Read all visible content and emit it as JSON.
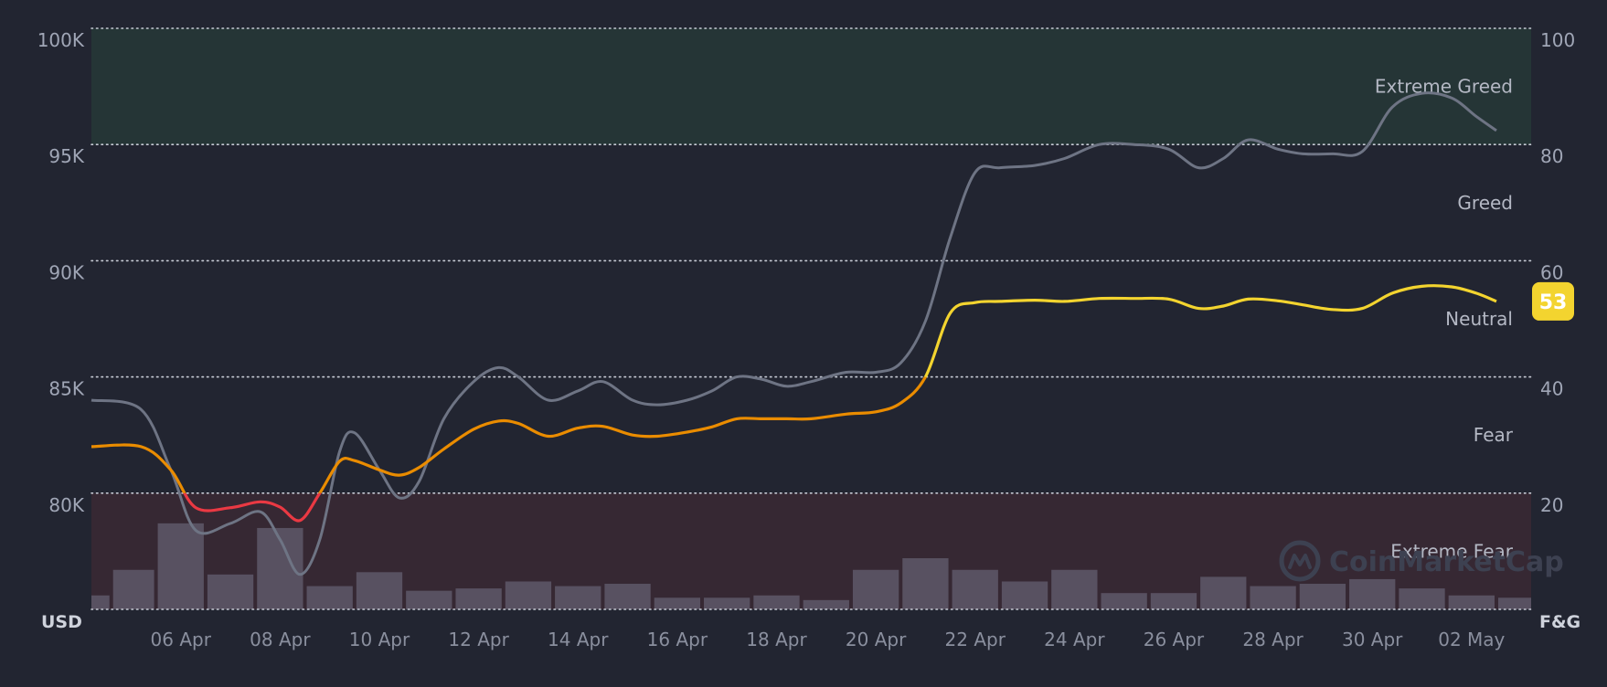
{
  "chart_data": {
    "type": "line",
    "x_ticks": [
      "06 Apr",
      "08 Apr",
      "10 Apr",
      "12 Apr",
      "14 Apr",
      "16 Apr",
      "18 Apr",
      "20 Apr",
      "22 Apr",
      "24 Apr",
      "26 Apr",
      "28 Apr",
      "30 Apr",
      "02 May"
    ],
    "x_range": [
      4.2,
      33.2
    ],
    "y_left": {
      "unit": "USD",
      "min": 75000,
      "max": 100000,
      "ticks": [
        "80K",
        "85K",
        "90K",
        "95K",
        "100K"
      ],
      "tick_values": [
        80000,
        85000,
        90000,
        95000,
        100000
      ]
    },
    "y_right": {
      "unit": "F&G",
      "min": 0,
      "max": 100,
      "ticks": [
        "20",
        "40",
        "60",
        "80",
        "100"
      ],
      "tick_values": [
        20,
        40,
        60,
        80,
        100
      ]
    },
    "zones": [
      {
        "label": "Extreme Greed",
        "from": 80,
        "to": 100,
        "color": "#253536"
      },
      {
        "label": "Greed",
        "from": 60,
        "to": 80
      },
      {
        "label": "Neutral",
        "from": 40,
        "to": 60
      },
      {
        "label": "Fear",
        "from": 20,
        "to": 40
      },
      {
        "label": "Extreme Fear",
        "from": 0,
        "to": 20,
        "color": "#362833"
      }
    ],
    "series": [
      {
        "axis": "left",
        "color": "#6e7484",
        "points": [
          [
            4.2,
            84000
          ],
          [
            5.2,
            83600
          ],
          [
            5.8,
            81000
          ],
          [
            6.3,
            78400
          ],
          [
            7.0,
            78700
          ],
          [
            7.6,
            79200
          ],
          [
            8.0,
            78000
          ],
          [
            8.4,
            76500
          ],
          [
            8.8,
            78000
          ],
          [
            9.2,
            81800
          ],
          [
            9.5,
            82600
          ],
          [
            10.0,
            81000
          ],
          [
            10.4,
            79800
          ],
          [
            10.8,
            80500
          ],
          [
            11.3,
            83200
          ],
          [
            11.9,
            84800
          ],
          [
            12.4,
            85400
          ],
          [
            12.8,
            85000
          ],
          [
            13.4,
            84000
          ],
          [
            14.0,
            84400
          ],
          [
            14.5,
            84800
          ],
          [
            15.1,
            84000
          ],
          [
            15.6,
            83800
          ],
          [
            16.2,
            84000
          ],
          [
            16.7,
            84400
          ],
          [
            17.2,
            85000
          ],
          [
            17.7,
            84900
          ],
          [
            18.2,
            84600
          ],
          [
            18.7,
            84800
          ],
          [
            19.4,
            85200
          ],
          [
            20.0,
            85200
          ],
          [
            20.5,
            85600
          ],
          [
            21.0,
            87400
          ],
          [
            21.5,
            91000
          ],
          [
            22.0,
            93800
          ],
          [
            22.5,
            94000
          ],
          [
            23.2,
            94100
          ],
          [
            23.8,
            94400
          ],
          [
            24.5,
            95000
          ],
          [
            25.2,
            95000
          ],
          [
            25.9,
            94800
          ],
          [
            26.5,
            94000
          ],
          [
            27.0,
            94400
          ],
          [
            27.5,
            95200
          ],
          [
            28.1,
            94800
          ],
          [
            28.6,
            94600
          ],
          [
            29.2,
            94600
          ],
          [
            29.8,
            94700
          ],
          [
            30.4,
            96600
          ],
          [
            31.0,
            97200
          ],
          [
            31.6,
            97000
          ],
          [
            32.1,
            96200
          ],
          [
            32.5,
            95600
          ]
        ]
      },
      {
        "axis": "right",
        "color_by_zone": {
          "Extreme Fear": "#ea3943",
          "Fear": "#ea8c00",
          "Neutral": "#f3d42f"
        },
        "points": [
          [
            4.2,
            28
          ],
          [
            5.2,
            28
          ],
          [
            5.8,
            24
          ],
          [
            6.3,
            17.5
          ],
          [
            7.0,
            17.5
          ],
          [
            7.6,
            18.5
          ],
          [
            8.0,
            17.6
          ],
          [
            8.4,
            15.3
          ],
          [
            8.8,
            20.0
          ],
          [
            9.2,
            25.5
          ],
          [
            9.5,
            25.6
          ],
          [
            10.0,
            24.0
          ],
          [
            10.4,
            23.1
          ],
          [
            10.8,
            24.4
          ],
          [
            11.3,
            27.6
          ],
          [
            11.9,
            31.0
          ],
          [
            12.4,
            32.4
          ],
          [
            12.8,
            32.0
          ],
          [
            13.4,
            29.8
          ],
          [
            14.0,
            31.2
          ],
          [
            14.5,
            31.5
          ],
          [
            15.1,
            30.0
          ],
          [
            15.6,
            29.8
          ],
          [
            16.2,
            30.5
          ],
          [
            16.7,
            31.4
          ],
          [
            17.2,
            32.8
          ],
          [
            17.7,
            32.8
          ],
          [
            18.2,
            32.8
          ],
          [
            18.7,
            32.8
          ],
          [
            19.4,
            33.6
          ],
          [
            20.0,
            34.0
          ],
          [
            20.5,
            35.5
          ],
          [
            21.0,
            40.0
          ],
          [
            21.5,
            51.0
          ],
          [
            22.0,
            52.8
          ],
          [
            22.5,
            53.0
          ],
          [
            23.2,
            53.2
          ],
          [
            23.8,
            53.0
          ],
          [
            24.5,
            53.5
          ],
          [
            25.2,
            53.5
          ],
          [
            25.9,
            53.4
          ],
          [
            26.5,
            51.8
          ],
          [
            27.0,
            52.2
          ],
          [
            27.5,
            53.4
          ],
          [
            28.1,
            53.1
          ],
          [
            28.6,
            52.4
          ],
          [
            29.2,
            51.6
          ],
          [
            29.8,
            51.8
          ],
          [
            30.4,
            54.4
          ],
          [
            31.0,
            55.6
          ],
          [
            31.6,
            55.5
          ],
          [
            32.1,
            54.4
          ],
          [
            32.5,
            53.0
          ]
        ]
      },
      {
        "type": "bar",
        "axis": "left",
        "color": "#5c5566",
        "opacity": 0.9,
        "values": [
          [
            4.2,
            75600
          ],
          [
            5.0,
            76700
          ],
          [
            6.0,
            78700
          ],
          [
            7.0,
            76500
          ],
          [
            8.0,
            78500
          ],
          [
            9.0,
            76000
          ],
          [
            10.0,
            76600
          ],
          [
            11.0,
            75800
          ],
          [
            12.0,
            75900
          ],
          [
            13.0,
            76200
          ],
          [
            14.0,
            76000
          ],
          [
            15.0,
            76100
          ],
          [
            16.0,
            75500
          ],
          [
            17.0,
            75500
          ],
          [
            18.0,
            75600
          ],
          [
            19.0,
            75400
          ],
          [
            20.0,
            76700
          ],
          [
            21.0,
            77200
          ],
          [
            22.0,
            76700
          ],
          [
            23.0,
            76200
          ],
          [
            24.0,
            76700
          ],
          [
            25.0,
            75700
          ],
          [
            26.0,
            75700
          ],
          [
            27.0,
            76400
          ],
          [
            28.0,
            76000
          ],
          [
            29.0,
            76100
          ],
          [
            30.0,
            76300
          ],
          [
            31.0,
            75900
          ],
          [
            32.0,
            75600
          ],
          [
            33.0,
            75500
          ]
        ]
      }
    ],
    "current_value_badge": {
      "value": "53",
      "color": "#f3d42f"
    },
    "grid": true
  },
  "watermark": {
    "text": "CoinMarketCap"
  }
}
